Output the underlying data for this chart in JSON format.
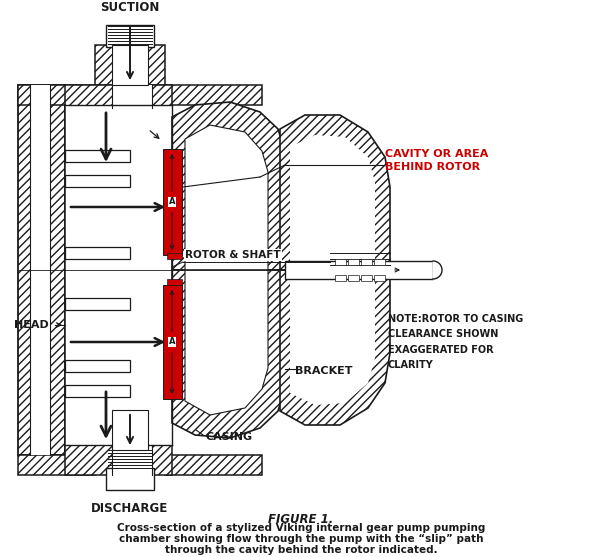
{
  "bg_color": "#ffffff",
  "line_color": "#1a1a1a",
  "red_color": "#cc0000",
  "title": "FIGURE 1.",
  "caption_line1": "Cross-section of a stylized Viking internal gear pump pumping",
  "caption_line2": "chamber showing flow through the pump with the “slip” path",
  "caption_line3": "through the cavity behind the rotor indicated.",
  "label_suction": "SUCTION",
  "label_discharge": "DISCHARGE",
  "label_head": "HEAD",
  "label_rotor_shaft": "ROTOR & SHAFT",
  "label_bracket": "BRACKET",
  "label_casing": "CASING",
  "label_cavity_line1": "CAVITY OR AREA",
  "label_cavity_line2": "BEHIND ROTOR",
  "label_note": "NOTE:ROTOR TO CASING\nCLEARANCE SHOWN\nEXAGGERATED FOR\nCLARITY",
  "figsize": [
    6.02,
    5.57
  ],
  "dpi": 100
}
